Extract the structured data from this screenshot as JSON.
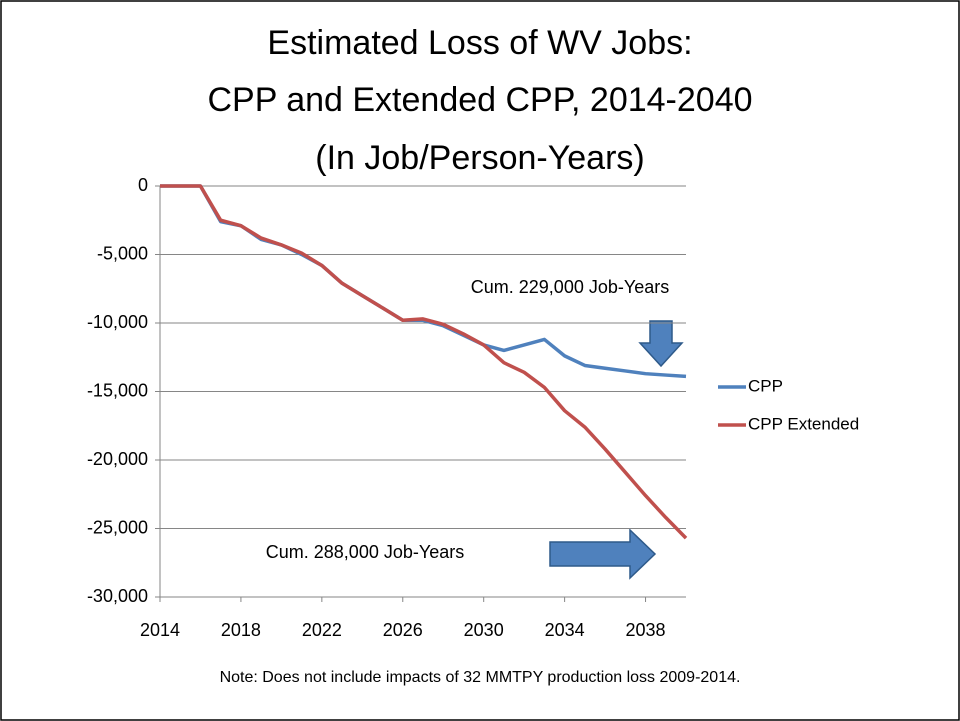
{
  "chart_data": {
    "type": "line",
    "title": [
      "Estimated Loss of WV Jobs:",
      "CPP and Extended CPP, 2014-2040",
      "(In Job/Person-Years)"
    ],
    "x": [
      2014,
      2015,
      2016,
      2017,
      2018,
      2019,
      2020,
      2021,
      2022,
      2023,
      2024,
      2025,
      2026,
      2027,
      2028,
      2029,
      2030,
      2031,
      2032,
      2033,
      2034,
      2035,
      2036,
      2037,
      2038,
      2039,
      2040
    ],
    "series": [
      {
        "name": "CPP",
        "color": "#4f81bd",
        "values": [
          0,
          0,
          0,
          -2600,
          -2900,
          -3900,
          -4300,
          -5000,
          -5800,
          -7100,
          -8000,
          -8900,
          -9800,
          -9800,
          -10200,
          -10900,
          -11600,
          -12000,
          -11600,
          -11200,
          -12400,
          -13100,
          -13300,
          -13500,
          -13700,
          -13800,
          -13900
        ]
      },
      {
        "name": "CPP Extended",
        "color": "#c0504d",
        "values": [
          0,
          0,
          0,
          -2500,
          -2900,
          -3800,
          -4300,
          -4900,
          -5800,
          -7100,
          -8000,
          -8900,
          -9800,
          -9700,
          -10100,
          -10800,
          -11600,
          -12900,
          -13600,
          -14700,
          -16400,
          -17600,
          -19200,
          -20900,
          -22600,
          -24200,
          -25700
        ]
      }
    ],
    "xlim": [
      2014,
      2040
    ],
    "xticks": [
      2014,
      2018,
      2022,
      2026,
      2030,
      2034,
      2038
    ],
    "ylim": [
      -30000,
      0
    ],
    "yticks": [
      {
        "value": -30000,
        "label": "-30,000"
      },
      {
        "value": -25000,
        "label": "-25,000"
      },
      {
        "value": -20000,
        "label": "-20,000"
      },
      {
        "value": -15000,
        "label": "-15,000"
      },
      {
        "value": -10000,
        "label": "-10,000"
      },
      {
        "value": -5000,
        "label": "-5,000"
      },
      0
    ],
    "grid": true,
    "legend": "right",
    "annotations": [
      "Cum. 229,000 Job-Years",
      "Cum. 288,000 Job-Years"
    ],
    "note": "Note: Does not include impacts of 32 MMTPY production loss 2009-2014."
  }
}
